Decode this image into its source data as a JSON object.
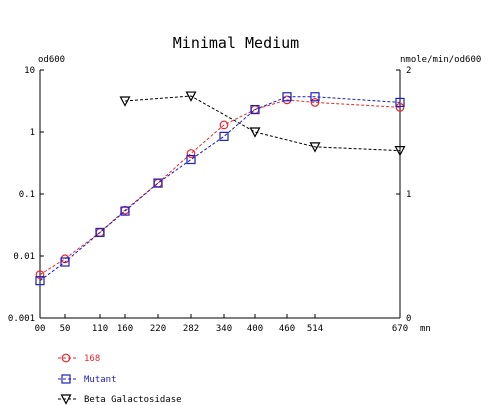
{
  "chart_data": {
    "type": "line",
    "title": "Minimal Medium",
    "y_left_label": "od600",
    "y_right_label": "nmole/min/od600",
    "x_unit_label": "mn",
    "x_ticks": [
      0,
      50,
      110,
      160,
      220,
      282,
      340,
      400,
      460,
      514,
      670
    ],
    "x_tick_labels": [
      "00",
      "50",
      "110",
      "160",
      "220",
      "282",
      "340",
      "400",
      "460",
      "514",
      "670"
    ],
    "xlim": [
      0,
      670
    ],
    "y_left_scale": "log",
    "y_left_lim": [
      0.001,
      10
    ],
    "y_left_ticks": [
      0.001,
      0.01,
      0.1,
      1,
      10
    ],
    "y_left_tick_labels": [
      "0.001",
      "0.01",
      "0.1",
      "1",
      "10"
    ],
    "y_right_scale": "linear",
    "y_right_lim": [
      0,
      2
    ],
    "y_right_ticks": [
      0,
      1,
      2
    ],
    "y_right_tick_labels": [
      "0",
      "1",
      "2"
    ],
    "legend_position": "bottom-left",
    "series": [
      {
        "name": "168",
        "axis": "left",
        "marker": "circle",
        "color": "#e8262d",
        "x": [
          0,
          50,
          110,
          160,
          220,
          282,
          340,
          400,
          460,
          514,
          670
        ],
        "y": [
          0.005,
          0.009,
          0.024,
          0.055,
          0.15,
          0.45,
          1.3,
          2.3,
          3.3,
          3.0,
          2.5
        ]
      },
      {
        "name": "Mutant",
        "axis": "left",
        "marker": "square",
        "color": "#1b1fbf",
        "x": [
          0,
          50,
          110,
          160,
          220,
          282,
          340,
          400,
          460,
          514,
          670
        ],
        "y": [
          0.004,
          0.008,
          0.024,
          0.053,
          0.15,
          0.36,
          0.85,
          2.3,
          3.7,
          3.7,
          3.0
        ]
      },
      {
        "name": "Beta Galactosidase",
        "axis": "right",
        "marker": "triangle-down",
        "color": "#000000",
        "x": [
          160,
          282,
          400,
          514,
          670
        ],
        "y": [
          1.75,
          1.79,
          1.5,
          1.38,
          1.35
        ]
      }
    ]
  }
}
